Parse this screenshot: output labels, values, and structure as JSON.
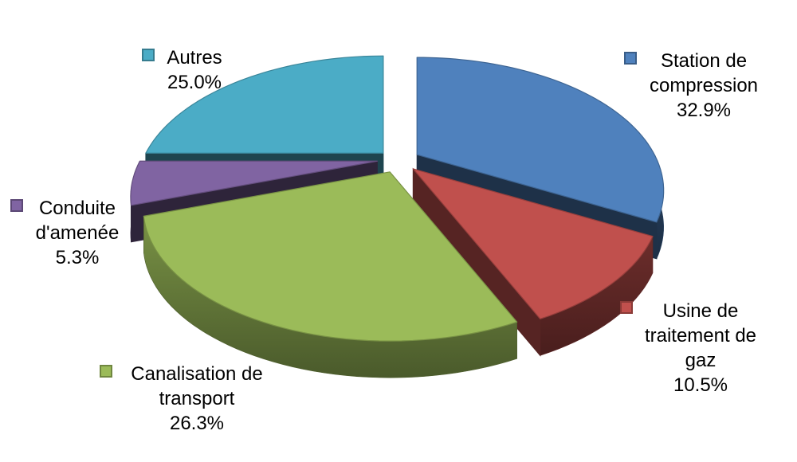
{
  "chart_data": {
    "type": "pie",
    "style": "3d-exploded",
    "title": "",
    "unit": "%",
    "start_angle_deg": 0,
    "direction": "clockwise",
    "background": "#FFFFFF",
    "text_color": "#000000",
    "legend_position": "around-pie",
    "slices": [
      {
        "id": "station",
        "label": "Station de compression",
        "value": 32.9,
        "display": "32.9%",
        "color": "#4F81BD",
        "legend_lines": [
          "Station de",
          "compression",
          "32.9%"
        ]
      },
      {
        "id": "usine",
        "label": "Usine de traitement de gaz",
        "value": 10.5,
        "display": "10.5%",
        "color": "#C0504D",
        "legend_lines": [
          "Usine de",
          "traitement de",
          "gaz",
          "10.5%"
        ]
      },
      {
        "id": "canalisation",
        "label": "Canalisation de transport",
        "value": 26.3,
        "display": "26.3%",
        "color": "#9BBB59",
        "legend_lines": [
          "Canalisation de",
          "transport",
          "26.3%"
        ]
      },
      {
        "id": "conduite",
        "label": "Conduite d'amenée",
        "value": 5.3,
        "display": "5.3%",
        "color": "#8064A2",
        "legend_lines": [
          "Conduite",
          "d'amenée",
          "5.3%"
        ]
      },
      {
        "id": "autres",
        "label": "Autres",
        "value": 25.0,
        "display": "25.0%",
        "color": "#4BACC6",
        "legend_lines": [
          "Autres",
          "25.0%"
        ]
      }
    ]
  }
}
